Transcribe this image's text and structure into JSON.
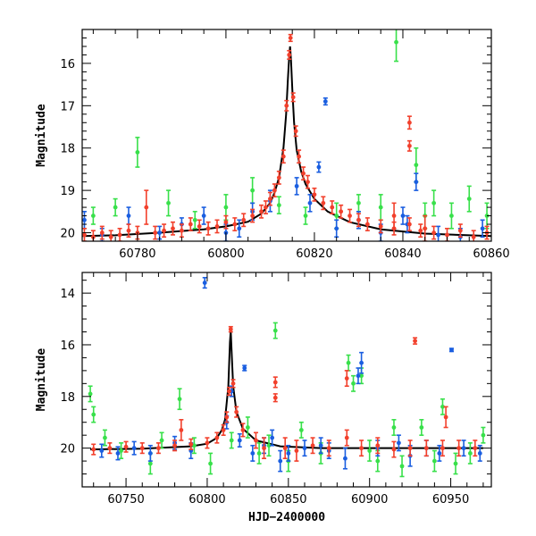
{
  "colors": {
    "model": "#000000",
    "blue": "#1a5ee0",
    "green": "#38e04a",
    "red": "#f2402c"
  },
  "chart_data": [
    {
      "type": "scatter",
      "panel": "top",
      "title": "",
      "xlabel": "",
      "ylabel": "Magnitude",
      "xlim": [
        60767.5,
        60860
      ],
      "ylim": [
        20.2,
        15.2
      ],
      "y_inverted": true,
      "x_ticks": [
        60780,
        60800,
        60820,
        60840,
        60860
      ],
      "y_ticks": [
        16,
        17,
        18,
        19,
        20
      ],
      "x_tick_labels": [
        "60780",
        "60800",
        "60820",
        "60840",
        "60860"
      ],
      "y_tick_labels": [
        "16",
        "17",
        "18",
        "19",
        "20"
      ],
      "series": [
        {
          "name": "model",
          "kind": "line",
          "color": "#000000",
          "x": [
            60767.5,
            60775,
            60785,
            60795,
            60800,
            60805,
            60808,
            60810,
            60811,
            60812,
            60813,
            60813.6,
            60814,
            60814.3,
            60814.5,
            60814.7,
            60815,
            60815.4,
            60816,
            60817,
            60818,
            60820,
            60823,
            60828,
            60835,
            60845,
            60860
          ],
          "y": [
            20.08,
            20.06,
            20.0,
            19.92,
            19.85,
            19.74,
            19.55,
            19.3,
            19.05,
            18.7,
            18.0,
            17.2,
            16.4,
            15.85,
            15.6,
            15.9,
            16.6,
            17.4,
            18.05,
            18.55,
            18.85,
            19.2,
            19.5,
            19.75,
            19.92,
            20.02,
            20.08
          ]
        },
        {
          "name": "red",
          "kind": "points",
          "color": "#f2402c",
          "x": [
            60768,
            60770,
            60772,
            60774,
            60776,
            60778,
            60780,
            60782,
            60784,
            60786,
            60788,
            60790,
            60792,
            60794,
            60796,
            60798,
            60800,
            60802,
            60804,
            60806,
            60808,
            60809,
            60810,
            60811,
            60812,
            60813,
            60813.7,
            60814.3,
            60814.6,
            60815.2,
            60815.8,
            60816.5,
            60817.5,
            60818.5,
            60820,
            60822,
            60824,
            60826,
            60828,
            60830,
            60832,
            60835,
            60838,
            60841.5,
            60841.5,
            60841.5,
            60844,
            60847,
            60850,
            60853,
            60856,
            60859,
            60838,
            60845
          ],
          "y": [
            20.05,
            20.1,
            20.0,
            20.1,
            20.05,
            19.95,
            20.0,
            19.4,
            20.0,
            19.95,
            19.9,
            19.95,
            19.8,
            19.85,
            19.9,
            19.85,
            19.75,
            19.8,
            19.7,
            19.6,
            19.5,
            19.4,
            19.2,
            19.0,
            18.7,
            18.2,
            17.0,
            15.8,
            15.4,
            16.8,
            17.6,
            18.2,
            18.6,
            18.8,
            19.1,
            19.3,
            19.4,
            19.5,
            19.6,
            19.7,
            19.8,
            19.85,
            19.9,
            17.4,
            17.95,
            19.8,
            19.95,
            20.0,
            20.05,
            19.95,
            20.1,
            20.0,
            19.6,
            19.9
          ],
          "err": [
            0.15,
            0.15,
            0.15,
            0.15,
            0.15,
            0.15,
            0.15,
            0.4,
            0.15,
            0.15,
            0.15,
            0.15,
            0.15,
            0.15,
            0.15,
            0.15,
            0.15,
            0.15,
            0.15,
            0.15,
            0.15,
            0.15,
            0.15,
            0.15,
            0.15,
            0.15,
            0.12,
            0.1,
            0.08,
            0.1,
            0.12,
            0.15,
            0.15,
            0.15,
            0.15,
            0.15,
            0.15,
            0.15,
            0.15,
            0.15,
            0.15,
            0.15,
            0.15,
            0.15,
            0.12,
            0.15,
            0.15,
            0.15,
            0.15,
            0.15,
            0.15,
            0.15,
            0.3,
            0.3
          ]
        },
        {
          "name": "blue",
          "kind": "points",
          "color": "#1a5ee0",
          "x": [
            60768,
            60772,
            60778,
            60785,
            60790,
            60795,
            60800,
            60803,
            60806,
            60810,
            60816,
            60819,
            60821,
            60822.5,
            60825,
            60830,
            60835,
            60840,
            60841,
            60843,
            60848,
            60853,
            60858
          ],
          "y": [
            19.7,
            20.05,
            19.6,
            20.0,
            19.8,
            19.6,
            20.0,
            19.9,
            19.5,
            19.25,
            18.9,
            19.3,
            18.45,
            16.9,
            19.9,
            19.7,
            20.0,
            19.6,
            19.8,
            18.8,
            20.05,
            20.1,
            19.9
          ],
          "err": [
            0.2,
            0.15,
            0.2,
            0.15,
            0.15,
            0.2,
            0.2,
            0.2,
            0.2,
            0.25,
            0.2,
            0.2,
            0.12,
            0.08,
            0.2,
            0.2,
            0.2,
            0.2,
            0.2,
            0.2,
            0.2,
            0.2,
            0.2
          ]
        },
        {
          "name": "green",
          "kind": "points",
          "color": "#38e04a",
          "x": [
            60770,
            60775,
            60780,
            60787,
            60793,
            60800,
            60806,
            60812,
            60818,
            60825,
            60830,
            60835,
            60838.5,
            60843,
            60845,
            60847,
            60851,
            60855,
            60859
          ],
          "y": [
            19.6,
            19.4,
            18.1,
            19.3,
            19.7,
            19.4,
            19.0,
            19.35,
            19.6,
            19.6,
            19.3,
            19.4,
            15.5,
            18.4,
            19.6,
            19.3,
            19.6,
            19.2,
            19.6
          ],
          "err": [
            0.2,
            0.2,
            0.35,
            0.3,
            0.2,
            0.3,
            0.3,
            0.2,
            0.2,
            0.3,
            0.2,
            0.3,
            0.45,
            0.4,
            0.3,
            0.3,
            0.3,
            0.3,
            0.3
          ]
        }
      ]
    },
    {
      "type": "scatter",
      "panel": "bottom",
      "title": "",
      "xlabel": "HJD−2400000",
      "ylabel": "Magnitude",
      "xlim": [
        60723,
        60975
      ],
      "ylim": [
        21.5,
        13.2
      ],
      "y_inverted": true,
      "x_ticks": [
        60750,
        60800,
        60850,
        60900,
        60950
      ],
      "y_ticks": [
        14,
        16,
        18,
        20
      ],
      "x_tick_labels": [
        "60750",
        "60800",
        "60850",
        "60900",
        "60950"
      ],
      "y_tick_labels": [
        "14",
        "16",
        "18",
        "20"
      ],
      "series": [
        {
          "name": "model",
          "kind": "line",
          "color": "#000000",
          "x": [
            60728,
            60760,
            60790,
            60800,
            60806,
            60809,
            60811,
            60813,
            60814,
            60814.5,
            60815,
            60816,
            60818,
            60822,
            60830,
            60845,
            60870,
            60970
          ],
          "y": [
            20.05,
            20.02,
            19.93,
            19.83,
            19.6,
            19.3,
            18.9,
            17.6,
            15.9,
            15.45,
            16.2,
            17.6,
            18.6,
            19.25,
            19.7,
            19.93,
            20.0,
            20.0
          ]
        },
        {
          "name": "red",
          "kind": "points",
          "color": "#f2402c",
          "x": [
            60730,
            60740,
            60750,
            60760,
            60770,
            60780,
            60784,
            60790,
            60800,
            60806,
            60810,
            60812,
            60813.5,
            60814.5,
            60816,
            60818,
            60822,
            60830,
            60835,
            60842,
            60842,
            60848,
            60855,
            60865,
            60875,
            60886,
            60886,
            60895,
            60905,
            60915,
            60925,
            60928,
            60935,
            60945,
            60947,
            60955,
            60965
          ],
          "y": [
            20.05,
            20.0,
            19.95,
            20.0,
            20.0,
            19.9,
            19.3,
            19.85,
            19.8,
            19.6,
            19.3,
            18.8,
            17.8,
            15.4,
            17.5,
            18.6,
            19.3,
            19.7,
            20.0,
            17.45,
            18.05,
            20.0,
            20.1,
            19.9,
            20.0,
            17.3,
            19.6,
            20.0,
            19.9,
            20.05,
            20.0,
            15.85,
            20.0,
            20.0,
            18.8,
            20.0,
            20.0
          ],
          "err": [
            0.2,
            0.2,
            0.2,
            0.2,
            0.2,
            0.2,
            0.4,
            0.2,
            0.2,
            0.2,
            0.2,
            0.2,
            0.15,
            0.1,
            0.15,
            0.2,
            0.25,
            0.3,
            0.4,
            0.2,
            0.15,
            0.4,
            0.4,
            0.3,
            0.3,
            0.3,
            0.3,
            0.3,
            0.3,
            0.3,
            0.3,
            0.12,
            0.3,
            0.3,
            0.4,
            0.3,
            0.3
          ]
        },
        {
          "name": "blue",
          "kind": "points",
          "color": "#1a5ee0",
          "x": [
            60735,
            60745,
            60755,
            60765,
            60780,
            60790,
            60798.5,
            60812,
            60815,
            60820,
            60823,
            60828,
            60835,
            60840,
            60845,
            60850,
            60860,
            60870,
            60875,
            60885,
            60893,
            60895,
            60905,
            60918,
            60925,
            60935,
            60943,
            60950.5,
            60958,
            60968
          ],
          "y": [
            20.1,
            20.2,
            20.0,
            20.2,
            19.8,
            20.1,
            13.6,
            19.0,
            17.8,
            19.7,
            16.9,
            20.2,
            19.9,
            19.6,
            20.5,
            20.2,
            20.0,
            19.9,
            20.1,
            20.4,
            17.2,
            16.7,
            20.0,
            19.8,
            20.3,
            20.0,
            20.2,
            16.2,
            20.0,
            20.2
          ],
          "err": [
            0.25,
            0.25,
            0.25,
            0.3,
            0.25,
            0.3,
            0.2,
            0.25,
            0.2,
            0.25,
            0.1,
            0.3,
            0.3,
            0.3,
            0.4,
            0.3,
            0.3,
            0.3,
            0.3,
            0.4,
            0.3,
            0.4,
            0.3,
            0.3,
            0.4,
            0.3,
            0.3,
            0.06,
            0.3,
            0.3
          ]
        },
        {
          "name": "green",
          "kind": "points",
          "color": "#38e04a",
          "x": [
            60728,
            60730,
            60737,
            60747,
            60765,
            60772,
            60783,
            60792,
            60802,
            60815,
            60825,
            60832,
            60838,
            60842,
            60850,
            60858,
            60870,
            60887,
            60890,
            60895,
            60900,
            60905,
            60915,
            60920,
            60932,
            60940,
            60945,
            60953,
            60962,
            60970
          ],
          "y": [
            17.9,
            18.7,
            19.6,
            20.1,
            20.6,
            19.7,
            18.1,
            19.9,
            20.6,
            19.7,
            19.2,
            20.2,
            19.9,
            15.45,
            20.5,
            19.3,
            20.2,
            16.7,
            17.5,
            17.2,
            20.1,
            20.5,
            19.2,
            20.7,
            19.2,
            20.5,
            18.4,
            20.6,
            20.2,
            19.5
          ],
          "err": [
            0.3,
            0.3,
            0.3,
            0.3,
            0.4,
            0.3,
            0.4,
            0.3,
            0.4,
            0.3,
            0.4,
            0.4,
            0.4,
            0.3,
            0.4,
            0.3,
            0.4,
            0.3,
            0.3,
            0.3,
            0.4,
            0.4,
            0.3,
            0.4,
            0.3,
            0.4,
            0.3,
            0.4,
            0.4,
            0.3
          ]
        }
      ]
    }
  ]
}
